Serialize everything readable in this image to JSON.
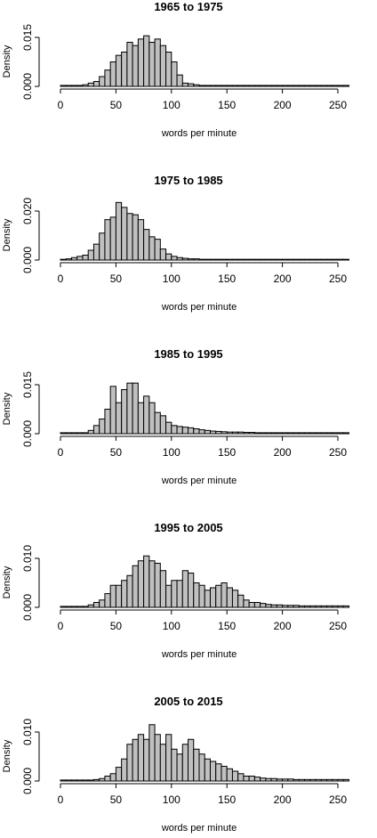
{
  "chart_data": [
    {
      "type": "bar",
      "title": "1965 to 1975",
      "xlabel": "words per minute",
      "ylabel": "Density",
      "xlim": [
        0,
        260
      ],
      "ylim": [
        0,
        0.0185
      ],
      "xticks": [
        "0",
        "50",
        "100",
        "150",
        "200",
        "250"
      ],
      "yticks": [
        "0.000",
        "0.015"
      ],
      "bin_width": 5,
      "bin_start": 0,
      "values": [
        0.0003,
        0.0003,
        0.0003,
        0.0003,
        0.0005,
        0.001,
        0.0015,
        0.003,
        0.005,
        0.0075,
        0.0095,
        0.0105,
        0.0135,
        0.0125,
        0.0145,
        0.0155,
        0.0135,
        0.0145,
        0.0125,
        0.0105,
        0.0075,
        0.0035,
        0.001,
        0.0008,
        0.0005,
        0.0003,
        0.0003,
        0.0003,
        0.0003,
        0.0003,
        0.0003,
        0.0003,
        0.0003,
        0.0003,
        0.0003,
        0.0003,
        0.0003,
        0.0003,
        0.0003,
        0.0003,
        0.0003,
        0.0003,
        0.0003,
        0.0003,
        0.0003,
        0.0003,
        0.0003,
        0.0003,
        0.0003,
        0.0003,
        0.0003,
        0.0003
      ]
    },
    {
      "type": "bar",
      "title": "1975 to 1985",
      "xlabel": "words per minute",
      "ylabel": "Density",
      "xlim": [
        0,
        260
      ],
      "ylim": [
        0,
        0.026
      ],
      "xticks": [
        "0",
        "50",
        "100",
        "150",
        "200",
        "250"
      ],
      "yticks": [
        "0.000",
        "0.020"
      ],
      "bin_width": 5,
      "bin_start": 0,
      "values": [
        0.0003,
        0.0005,
        0.001,
        0.0015,
        0.002,
        0.004,
        0.0065,
        0.011,
        0.0165,
        0.0175,
        0.0235,
        0.0215,
        0.019,
        0.0185,
        0.0165,
        0.0125,
        0.0095,
        0.0085,
        0.0045,
        0.0025,
        0.0015,
        0.001,
        0.0007,
        0.0005,
        0.0005,
        0.0003,
        0.0003,
        0.0003,
        0.0003,
        0.0003,
        0.0003,
        0.0003,
        0.0003,
        0.0003,
        0.0003,
        0.0003,
        0.0003,
        0.0003,
        0.0003,
        0.0003,
        0.0003,
        0.0003,
        0.0003,
        0.0003,
        0.0003,
        0.0003,
        0.0003,
        0.0003,
        0.0003,
        0.0003,
        0.0003,
        0.0003
      ]
    },
    {
      "type": "bar",
      "title": "1985 to 1995",
      "xlabel": "words per minute",
      "ylabel": "Density",
      "xlim": [
        0,
        260
      ],
      "ylim": [
        0,
        0.0185
      ],
      "xticks": [
        "0",
        "50",
        "100",
        "150",
        "200",
        "250"
      ],
      "yticks": [
        "0.000",
        "0.015"
      ],
      "bin_width": 5,
      "bin_start": 0,
      "values": [
        0.0003,
        0.0003,
        0.0003,
        0.0003,
        0.0003,
        0.001,
        0.0025,
        0.0045,
        0.0075,
        0.0145,
        0.0095,
        0.0135,
        0.0155,
        0.0155,
        0.0095,
        0.0115,
        0.0095,
        0.0065,
        0.0055,
        0.0035,
        0.0025,
        0.0022,
        0.002,
        0.0018,
        0.0015,
        0.0012,
        0.001,
        0.0008,
        0.0007,
        0.0006,
        0.0005,
        0.0005,
        0.0005,
        0.0004,
        0.0004,
        0.0003,
        0.0003,
        0.0003,
        0.0003,
        0.0003,
        0.0003,
        0.0003,
        0.0003,
        0.0003,
        0.0003,
        0.0003,
        0.0003,
        0.0003,
        0.0003,
        0.0003,
        0.0003,
        0.0003
      ]
    },
    {
      "type": "bar",
      "title": "1995 to 2005",
      "xlabel": "words per minute",
      "ylabel": "Density",
      "xlim": [
        0,
        260
      ],
      "ylim": [
        0,
        0.0122
      ],
      "xticks": [
        "0",
        "50",
        "100",
        "150",
        "200",
        "250"
      ],
      "yticks": [
        "0.000",
        "0.010"
      ],
      "bin_width": 5,
      "bin_start": 0,
      "values": [
        0.0002,
        0.0002,
        0.0002,
        0.0002,
        0.0002,
        0.0005,
        0.001,
        0.0015,
        0.0028,
        0.0045,
        0.0045,
        0.0055,
        0.0065,
        0.0085,
        0.0095,
        0.0105,
        0.0095,
        0.009,
        0.0075,
        0.0045,
        0.0055,
        0.0055,
        0.0075,
        0.007,
        0.005,
        0.0045,
        0.0035,
        0.004,
        0.0045,
        0.005,
        0.004,
        0.0035,
        0.0025,
        0.0015,
        0.001,
        0.001,
        0.0008,
        0.0006,
        0.0005,
        0.0005,
        0.0004,
        0.0004,
        0.0004,
        0.0003,
        0.0003,
        0.0003,
        0.0003,
        0.0003,
        0.0003,
        0.0003,
        0.0003,
        0.0003
      ]
    },
    {
      "type": "bar",
      "title": "2005 to 2015",
      "xlabel": "words per minute",
      "ylabel": "Density",
      "xlim": [
        0,
        260
      ],
      "ylim": [
        0,
        0.0122
      ],
      "xticks": [
        "0",
        "50",
        "100",
        "150",
        "200",
        "250"
      ],
      "yticks": [
        "0.000",
        "0.010"
      ],
      "bin_width": 5,
      "bin_start": 0,
      "values": [
        0.0002,
        0.0002,
        0.0002,
        0.0002,
        0.0002,
        0.0002,
        0.0003,
        0.0005,
        0.001,
        0.0015,
        0.0028,
        0.0045,
        0.0075,
        0.0085,
        0.0095,
        0.0085,
        0.0115,
        0.0095,
        0.0075,
        0.0095,
        0.0065,
        0.0055,
        0.0075,
        0.0085,
        0.0065,
        0.0055,
        0.0045,
        0.004,
        0.0035,
        0.003,
        0.0025,
        0.002,
        0.0015,
        0.001,
        0.001,
        0.0008,
        0.0006,
        0.0005,
        0.0005,
        0.0004,
        0.0004,
        0.0004,
        0.0003,
        0.0003,
        0.0003,
        0.0003,
        0.0003,
        0.0003,
        0.0003,
        0.0003,
        0.0003,
        0.0003
      ]
    }
  ],
  "colors": {
    "bar_fill": "#c0c0c0",
    "bar_stroke": "#000000",
    "axis": "#000000"
  }
}
